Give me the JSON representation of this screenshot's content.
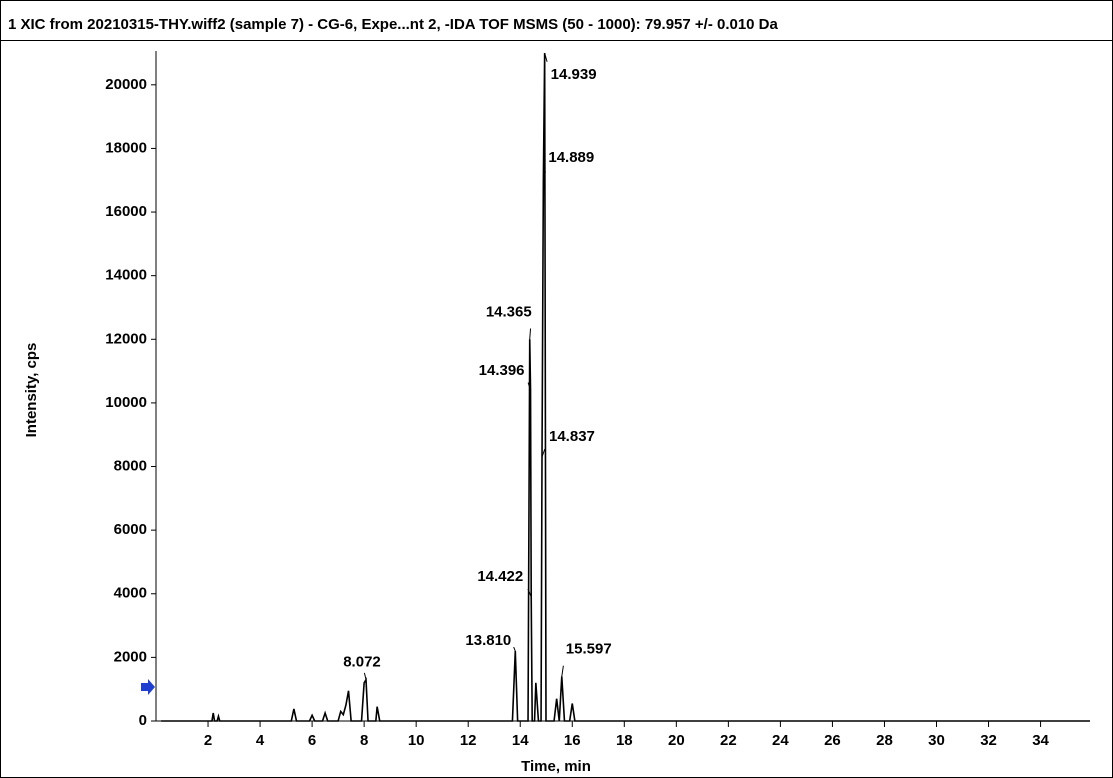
{
  "chart_data": {
    "type": "line",
    "title": "1 XIC from 20210315-THY.wiff2 (sample 7) - CG-6, Expe...nt 2, -IDA TOF MSMS (50 - 1000): 79.957 +/- 0.010 Da",
    "x_label": "Time, min",
    "y_label": "Intensity, cps",
    "color": "#000000",
    "x": [
      0.2,
      2.15,
      2.2,
      2.25,
      2.35,
      2.4,
      2.45,
      5.2,
      5.3,
      5.4,
      5.9,
      6.0,
      6.1,
      6.4,
      6.5,
      6.6,
      7.0,
      7.1,
      7.2,
      7.3,
      7.4,
      7.5,
      7.9,
      8.0,
      8.072,
      8.15,
      8.45,
      8.5,
      8.6,
      13.7,
      13.81,
      13.9,
      14.3,
      14.365,
      14.396,
      14.422,
      14.46,
      14.55,
      14.6,
      14.7,
      14.8,
      14.837,
      14.889,
      14.939,
      14.99,
      15.05,
      15.3,
      15.4,
      15.5,
      15.597,
      15.7,
      15.9,
      16.0,
      16.1,
      35.9
    ],
    "values": [
      0,
      0,
      250,
      0,
      0,
      150,
      0,
      0,
      380,
      0,
      0,
      180,
      0,
      0,
      250,
      0,
      0,
      300,
      200,
      500,
      950,
      0,
      0,
      1200,
      1300,
      0,
      0,
      450,
      0,
      0,
      2200,
      0,
      0,
      12000,
      10400,
      3900,
      0,
      0,
      1200,
      0,
      0,
      8300,
      17000,
      21000,
      0,
      0,
      0,
      700,
      0,
      1400,
      0,
      0,
      550,
      0,
      0
    ],
    "annotations": [
      {
        "label": "14.939",
        "x": 14.939,
        "y": 21000
      },
      {
        "label": "14.889",
        "x": 14.889,
        "y": 17000
      },
      {
        "label": "14.365",
        "x": 14.365,
        "y": 12000
      },
      {
        "label": "14.396",
        "x": 14.396,
        "y": 10400
      },
      {
        "label": "14.837",
        "x": 14.837,
        "y": 8300
      },
      {
        "label": "14.422",
        "x": 14.422,
        "y": 3900
      },
      {
        "label": "13.810",
        "x": 13.81,
        "y": 2200
      },
      {
        "label": "15.597",
        "x": 15.597,
        "y": 1400
      },
      {
        "label": "8.072",
        "x": 8.072,
        "y": 1300
      }
    ],
    "xlim": [
      0,
      35.9
    ],
    "ylim": [
      0,
      21000
    ],
    "xticks": [
      2,
      4,
      6,
      8,
      10,
      12,
      14,
      16,
      18,
      20,
      22,
      24,
      26,
      28,
      30,
      32,
      34
    ],
    "yticks": [
      0,
      2000,
      4000,
      6000,
      8000,
      10000,
      12000,
      14000,
      16000,
      18000,
      20000
    ]
  }
}
